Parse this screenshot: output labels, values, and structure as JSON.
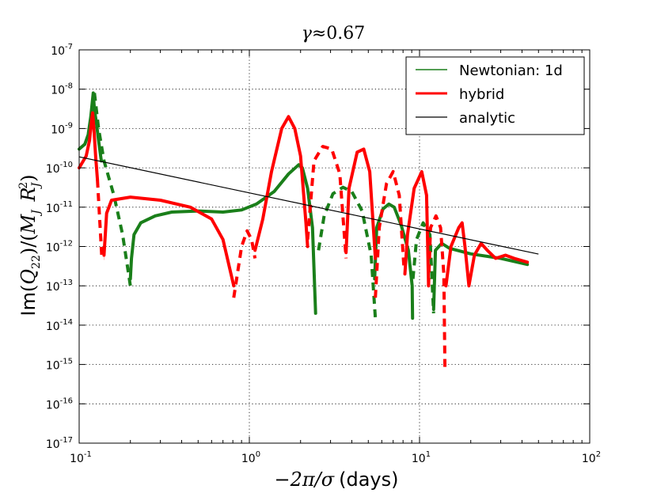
{
  "chart_data": {
    "type": "line",
    "title": "γ≈0.67",
    "title_prefix": "γ≈",
    "title_value": "0.67",
    "xlabel": "−2π/σ (days)",
    "xlabel_math": "−2π/σ",
    "xlabel_text": "(days)",
    "ylabel": "Im(Q22)/(MJ RJ²)",
    "ylabel_parts": {
      "im": "Im",
      "q": "Q",
      "q_sub": "22",
      "m": "M",
      "m_sub": "J",
      "r": "R",
      "r_sub": "J",
      "r_sup": "2"
    },
    "xscale": "log",
    "yscale": "log",
    "xlim": [
      0.1,
      100
    ],
    "ylim": [
      1e-17,
      1e-07
    ],
    "grid": true,
    "legend_position": "top-right",
    "x_ticks": [
      {
        "base": "10",
        "exp": "-1",
        "value": 0.1
      },
      {
        "base": "10",
        "exp": "0",
        "value": 1
      },
      {
        "base": "10",
        "exp": "1",
        "value": 10
      },
      {
        "base": "10",
        "exp": "2",
        "value": 100
      }
    ],
    "y_ticks": [
      {
        "base": "10",
        "exp": "-7",
        "value": 1e-07
      },
      {
        "base": "10",
        "exp": "-8",
        "value": 1e-08
      },
      {
        "base": "10",
        "exp": "-9",
        "value": 1e-09
      },
      {
        "base": "10",
        "exp": "-10",
        "value": 1e-10
      },
      {
        "base": "10",
        "exp": "-11",
        "value": 1e-11
      },
      {
        "base": "10",
        "exp": "-12",
        "value": 1e-12
      },
      {
        "base": "10",
        "exp": "-13",
        "value": 1e-13
      },
      {
        "base": "10",
        "exp": "-14",
        "value": 1e-14
      },
      {
        "base": "10",
        "exp": "-15",
        "value": 1e-15
      },
      {
        "base": "10",
        "exp": "-16",
        "value": 1e-16
      },
      {
        "base": "10",
        "exp": "-17",
        "value": 1e-17
      }
    ],
    "series": [
      {
        "name": "Newtonian: 1d",
        "color": "#1a7f1a",
        "solid_segments": [
          [
            [
              0.1,
              3e-10
            ],
            [
              0.108,
              4e-10
            ],
            [
              0.113,
              7e-10
            ],
            [
              0.117,
              2e-09
            ],
            [
              0.121,
              8e-09
            ],
            [
              0.123,
              3e-09
            ],
            [
              0.126,
              1.5e-09
            ],
            [
              0.13,
              5e-10
            ],
            [
              0.135,
              1.5e-10
            ]
          ],
          [
            [
              0.2,
              1.5e-13
            ],
            [
              0.203,
              5e-13
            ],
            [
              0.21,
              2e-12
            ],
            [
              0.23,
              4e-12
            ],
            [
              0.28,
              6e-12
            ],
            [
              0.35,
              7.5e-12
            ],
            [
              0.5,
              8e-12
            ],
            [
              0.7,
              7.5e-12
            ],
            [
              0.9,
              8.5e-12
            ],
            [
              1.1,
              1.2e-11
            ],
            [
              1.4,
              2.5e-11
            ],
            [
              1.7,
              7e-11
            ],
            [
              1.95,
              1.2e-10
            ],
            [
              2.05,
              1e-10
            ],
            [
              2.2,
              3e-11
            ],
            [
              2.35,
              3e-12
            ],
            [
              2.45,
              2e-14
            ]
          ],
          [
            [
              5.45,
              1.5e-13
            ],
            [
              5.6,
              3e-12
            ],
            [
              6.1,
              9e-12
            ],
            [
              6.6,
              1.2e-11
            ],
            [
              7.1,
              1e-11
            ],
            [
              7.8,
              3.5e-12
            ],
            [
              8.6,
              8e-13
            ],
            [
              9.05,
              1e-13
            ],
            [
              9.1,
              1.5e-14
            ]
          ],
          [
            [
              12.1,
              2.5e-14
            ],
            [
              12.4,
              8e-13
            ],
            [
              13.5,
              1.2e-12
            ],
            [
              15,
              9e-13
            ],
            [
              20,
              6.5e-13
            ],
            [
              30,
              5e-13
            ],
            [
              43,
              3.5e-13
            ]
          ]
        ],
        "dashed_segments": [
          [
            [
              0.123,
              8e-09
            ],
            [
              0.13,
              1e-09
            ],
            [
              0.14,
              1.5e-10
            ],
            [
              0.16,
              2e-11
            ],
            [
              0.18,
              2e-12
            ],
            [
              0.2,
              1e-13
            ]
          ],
          [
            [
              2.55,
              8e-13
            ],
            [
              2.75,
              6e-12
            ],
            [
              3.1,
              2.2e-11
            ],
            [
              3.55,
              3.2e-11
            ],
            [
              4,
              2.5e-11
            ],
            [
              4.6,
              8e-12
            ],
            [
              5.2,
              6e-13
            ],
            [
              5.5,
              1.5e-14
            ]
          ],
          [
            [
              9.15,
              1.5e-13
            ],
            [
              9.6,
              1.5e-12
            ],
            [
              10.5,
              4e-12
            ],
            [
              11.5,
              2e-12
            ],
            [
              12.1,
              2e-14
            ]
          ]
        ],
        "line_width": "thick"
      },
      {
        "name": "hybrid",
        "color": "#ff0000",
        "solid_segments": [
          [
            [
              0.1,
              1e-10
            ],
            [
              0.11,
              2e-10
            ],
            [
              0.115,
              5e-10
            ],
            [
              0.118,
              1.5e-09
            ],
            [
              0.12,
              2.5e-09
            ],
            [
              0.122,
              1e-09
            ],
            [
              0.125,
              2e-10
            ],
            [
              0.128,
              5e-11
            ]
          ],
          [
            [
              0.14,
              6e-13
            ],
            [
              0.145,
              7e-12
            ],
            [
              0.155,
              1.5e-11
            ],
            [
              0.2,
              1.8e-11
            ],
            [
              0.3,
              1.5e-11
            ],
            [
              0.45,
              1e-11
            ],
            [
              0.6,
              5e-12
            ],
            [
              0.7,
              1.5e-12
            ],
            [
              0.78,
              2e-13
            ],
            [
              0.81,
              1e-13
            ]
          ],
          [
            [
              1.08,
              8e-13
            ],
            [
              1.2,
              5e-12
            ],
            [
              1.35,
              8e-11
            ],
            [
              1.55,
              1e-09
            ],
            [
              1.7,
              2e-09
            ],
            [
              1.85,
              1e-09
            ],
            [
              2,
              2e-10
            ],
            [
              2.15,
              4e-12
            ],
            [
              2.2,
              1e-12
            ]
          ],
          [
            [
              3.7,
              7e-13
            ],
            [
              3.85,
              3e-11
            ],
            [
              4.3,
              2.5e-10
            ],
            [
              4.7,
              3e-10
            ],
            [
              5.1,
              8e-11
            ],
            [
              5.5,
              5e-13
            ]
          ],
          [
            [
              8.2,
              2e-13
            ],
            [
              8.5,
              2e-12
            ],
            [
              9.3,
              3e-11
            ],
            [
              10.3,
              8e-11
            ],
            [
              11,
              2e-11
            ],
            [
              11.3,
              1e-13
            ]
          ],
          [
            [
              14.3,
              1e-13
            ],
            [
              15.3,
              1e-12
            ],
            [
              17,
              3e-12
            ],
            [
              17.8,
              4e-12
            ],
            [
              18.5,
              1e-12
            ],
            [
              19.5,
              1e-13
            ],
            [
              21,
              6e-13
            ],
            [
              23,
              1.2e-12
            ],
            [
              25,
              8e-13
            ],
            [
              28,
              5e-13
            ],
            [
              32,
              6e-13
            ],
            [
              36,
              5e-13
            ],
            [
              43,
              4e-13
            ]
          ]
        ],
        "dashed_segments": [
          [
            [
              0.128,
              5e-11
            ],
            [
              0.132,
              5e-12
            ],
            [
              0.136,
              5e-13
            ],
            [
              0.14,
              5e-13
            ]
          ],
          [
            [
              0.81,
              5e-14
            ],
            [
              0.9,
              1e-12
            ],
            [
              0.97,
              2.5e-12
            ],
            [
              1.03,
              1.5e-12
            ],
            [
              1.08,
              5e-13
            ]
          ],
          [
            [
              2.2,
              1.5e-12
            ],
            [
              2.4,
              1.5e-10
            ],
            [
              2.7,
              3.5e-10
            ],
            [
              3.05,
              3e-10
            ],
            [
              3.4,
              7e-11
            ],
            [
              3.7,
              5e-13
            ]
          ],
          [
            [
              5.5,
              5e-14
            ],
            [
              5.8,
              3e-12
            ],
            [
              6.4,
              4e-11
            ],
            [
              7,
              8e-11
            ],
            [
              7.6,
              2e-11
            ],
            [
              8.1,
              3e-13
            ]
          ],
          [
            [
              11.3,
              1e-13
            ],
            [
              11.6,
              3e-12
            ],
            [
              12.5,
              6e-12
            ],
            [
              13.3,
              3e-12
            ],
            [
              13.9,
              2e-13
            ],
            [
              14.1,
              8e-16
            ]
          ]
        ],
        "line_width": "thick"
      },
      {
        "name": "analytic",
        "color": "#000000",
        "type": "power-law",
        "points": [
          [
            0.1,
            1.9e-10
          ],
          [
            50,
            6.4e-13
          ]
        ],
        "line_width": "thin"
      }
    ]
  }
}
